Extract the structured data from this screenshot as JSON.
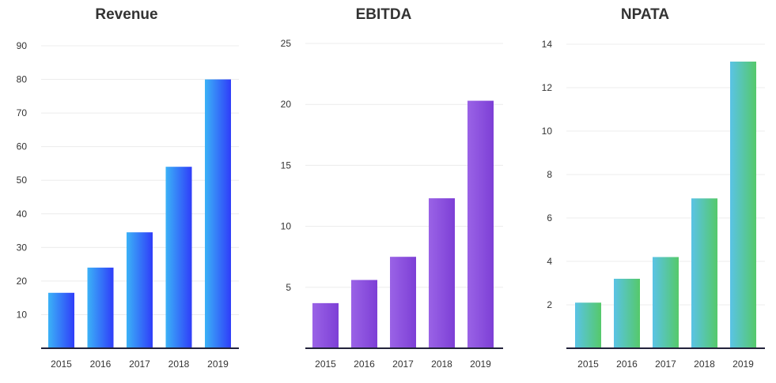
{
  "chart_data": [
    {
      "type": "bar",
      "title": "Revenue",
      "categories": [
        "2015",
        "2016",
        "2017",
        "2018",
        "2019"
      ],
      "values": [
        16.5,
        24,
        34.5,
        54,
        80
      ],
      "yticks": [
        10,
        20,
        30,
        40,
        50,
        60,
        70,
        80,
        90
      ],
      "ylim": [
        0,
        90
      ],
      "grid": true,
      "gradient": [
        "#3bb2f7",
        "#2f3df9"
      ]
    },
    {
      "type": "bar",
      "title": "EBITDA",
      "categories": [
        "2015",
        "2016",
        "2017",
        "2018",
        "2019"
      ],
      "values": [
        3.7,
        5.6,
        7.5,
        12.3,
        20.3
      ],
      "yticks": [
        5,
        10,
        15,
        20,
        25
      ],
      "ylim": [
        0,
        25
      ],
      "grid": true,
      "gradient": [
        "#9a63e6",
        "#7d3fd6"
      ]
    },
    {
      "type": "bar",
      "title": "NPATA",
      "categories": [
        "2015",
        "2016",
        "2017",
        "2018",
        "2019"
      ],
      "values": [
        2.1,
        3.2,
        4.2,
        6.9,
        13.2
      ],
      "yticks": [
        2,
        4,
        6,
        8,
        10,
        12,
        14
      ],
      "ylim": [
        0,
        14
      ],
      "grid": true,
      "gradient": [
        "#5ac3e6",
        "#55c96a"
      ]
    }
  ]
}
